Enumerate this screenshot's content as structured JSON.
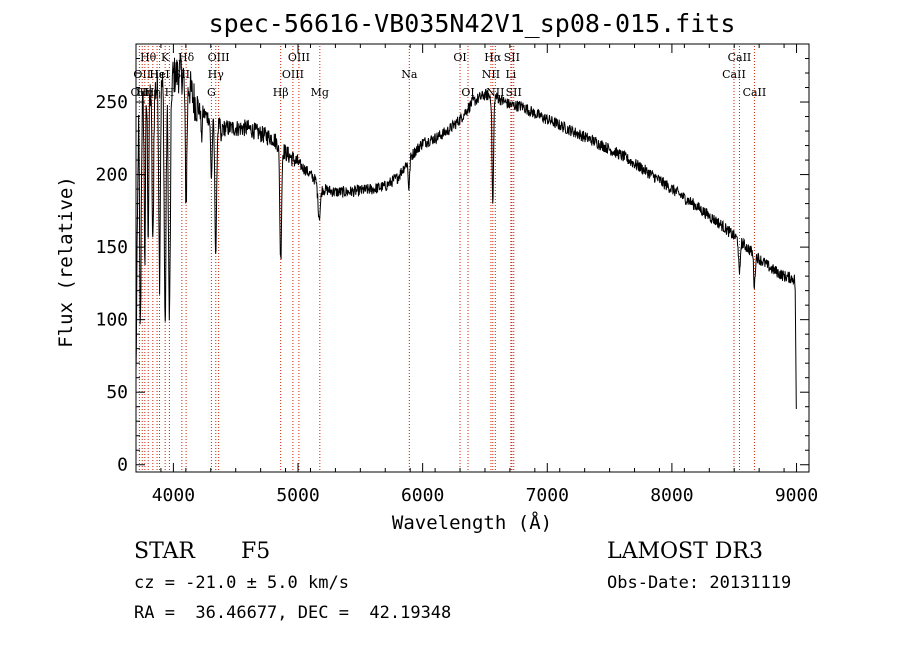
{
  "chart_data": {
    "type": "line",
    "title": "spec-56616-VB035N42V1_sp08-015.fits",
    "xlabel": "Wavelength (Å)",
    "ylabel": "Flux (relative)",
    "xlim": [
      3700,
      9100
    ],
    "ylim": [
      -5,
      290
    ],
    "xticks": [
      4000,
      5000,
      6000,
      7000,
      8000,
      9000
    ],
    "yticks": [
      0,
      50,
      100,
      150,
      200,
      250
    ],
    "xtick_labels": [
      "4000",
      "5000",
      "6000",
      "7000",
      "8000",
      "9000"
    ],
    "ytick_labels": [
      "0",
      "50",
      "100",
      "150",
      "200",
      "250"
    ],
    "grid": false,
    "continuum": [
      [
        3700,
        60
      ],
      [
        3720,
        240
      ],
      [
        3760,
        250
      ],
      [
        3800,
        255
      ],
      [
        3850,
        258
      ],
      [
        3900,
        262
      ],
      [
        3950,
        265
      ],
      [
        4000,
        268
      ],
      [
        4050,
        270
      ],
      [
        4100,
        268
      ],
      [
        4150,
        255
      ],
      [
        4200,
        245
      ],
      [
        4300,
        238
      ],
      [
        4400,
        232
      ],
      [
        4500,
        232
      ],
      [
        4600,
        232
      ],
      [
        4700,
        228
      ],
      [
        4800,
        225
      ],
      [
        4900,
        215
      ],
      [
        5000,
        208
      ],
      [
        5100,
        200
      ],
      [
        5200,
        190
      ],
      [
        5300,
        188
      ],
      [
        5400,
        188
      ],
      [
        5500,
        189
      ],
      [
        5600,
        190
      ],
      [
        5700,
        192
      ],
      [
        5800,
        198
      ],
      [
        5900,
        212
      ],
      [
        6000,
        222
      ],
      [
        6100,
        225
      ],
      [
        6200,
        230
      ],
      [
        6300,
        238
      ],
      [
        6400,
        250
      ],
      [
        6500,
        255
      ],
      [
        6600,
        253
      ],
      [
        6700,
        248
      ],
      [
        6800,
        247
      ],
      [
        6900,
        242
      ],
      [
        7000,
        238
      ],
      [
        7200,
        230
      ],
      [
        7400,
        222
      ],
      [
        7600,
        213
      ],
      [
        7800,
        202
      ],
      [
        8000,
        190
      ],
      [
        8200,
        178
      ],
      [
        8400,
        165
      ],
      [
        8600,
        150
      ],
      [
        8700,
        142
      ],
      [
        8800,
        135
      ],
      [
        8900,
        130
      ],
      [
        8990,
        128
      ]
    ],
    "absorption_features": [
      {
        "wave": 3735,
        "depth": 150,
        "width": 6
      },
      {
        "wave": 3771,
        "depth": 110,
        "width": 5
      },
      {
        "wave": 3798,
        "depth": 95,
        "width": 5
      },
      {
        "wave": 3835,
        "depth": 110,
        "width": 6
      },
      {
        "wave": 3889,
        "depth": 130,
        "width": 6
      },
      {
        "wave": 3934,
        "depth": 170,
        "width": 7
      },
      {
        "wave": 3968,
        "depth": 165,
        "width": 8
      },
      {
        "wave": 4102,
        "depth": 85,
        "width": 7
      },
      {
        "wave": 4226,
        "depth": 20,
        "width": 4
      },
      {
        "wave": 4305,
        "depth": 40,
        "width": 6
      },
      {
        "wave": 4340,
        "depth": 90,
        "width": 7
      },
      {
        "wave": 4384,
        "depth": 12,
        "width": 4
      },
      {
        "wave": 4861,
        "depth": 78,
        "width": 7
      },
      {
        "wave": 5170,
        "depth": 22,
        "width": 10
      },
      {
        "wave": 5890,
        "depth": 20,
        "width": 6
      },
      {
        "wave": 6563,
        "depth": 75,
        "width": 6
      },
      {
        "wave": 8542,
        "depth": 25,
        "width": 6
      },
      {
        "wave": 8662,
        "depth": 22,
        "width": 6
      },
      {
        "wave": 9000,
        "depth": 100,
        "width": 5
      }
    ],
    "line_markers": [
      {
        "wave": 3727,
        "label": "OII",
        "row": 3
      },
      {
        "wave": 3750,
        "label": "OII",
        "row": 2
      },
      {
        "wave": 3771,
        "label": "Hη",
        "row": 3
      },
      {
        "wave": 3798,
        "label": "Hθ",
        "row": 1
      },
      {
        "wave": 3835,
        "label": "Hη",
        "row": 3
      },
      {
        "wave": 3869,
        "label": "Hε",
        "row": 2
      },
      {
        "wave": 3889,
        "label": "HeI",
        "row": 2
      },
      {
        "wave": 3934,
        "label": "K",
        "row": 1
      },
      {
        "wave": 3968,
        "label": "H",
        "row": 3
      },
      {
        "wave": 4068,
        "label": "SII",
        "row": 2
      },
      {
        "wave": 4102,
        "label": "Hδ",
        "row": 1
      },
      {
        "wave": 4305,
        "label": "G",
        "row": 3
      },
      {
        "wave": 4340,
        "label": "Hγ",
        "row": 2
      },
      {
        "wave": 4363,
        "label": "OIII",
        "row": 1
      },
      {
        "wave": 4861,
        "label": "Hβ",
        "row": 3
      },
      {
        "wave": 4959,
        "label": "OIII",
        "row": 2
      },
      {
        "wave": 5007,
        "label": "OIII",
        "row": 1
      },
      {
        "wave": 5175,
        "label": "Mg",
        "row": 3
      },
      {
        "wave": 5893,
        "label": "Na",
        "row": 2
      },
      {
        "wave": 6300,
        "label": "OI",
        "row": 1
      },
      {
        "wave": 6364,
        "label": "OI",
        "row": 3
      },
      {
        "wave": 6548,
        "label": "NII",
        "row": 2
      },
      {
        "wave": 6563,
        "label": "Hα",
        "row": 1
      },
      {
        "wave": 6583,
        "label": "NII",
        "row": 3
      },
      {
        "wave": 6708,
        "label": "Li",
        "row": 2
      },
      {
        "wave": 6716,
        "label": "SII",
        "row": 1
      },
      {
        "wave": 6731,
        "label": "SII",
        "row": 3
      },
      {
        "wave": 8498,
        "label": "CaII",
        "row": 2
      },
      {
        "wave": 8542,
        "label": "CaII",
        "row": 1
      },
      {
        "wave": 8662,
        "label": "CaII",
        "row": 3
      }
    ]
  },
  "info": {
    "object_class": "STAR",
    "subclass": "F5",
    "redshift_line": "cz = -21.0 ± 5.0 km/s",
    "coords_line": "RA =  36.46677, DEC =  42.19348",
    "survey": "LAMOST DR3",
    "obs_date_line": "Obs-Date: 20131119"
  },
  "colors": {
    "spectrum": "#000000",
    "marker_line": "#cc2200",
    "axis": "#000000",
    "background": "#ffffff"
  }
}
